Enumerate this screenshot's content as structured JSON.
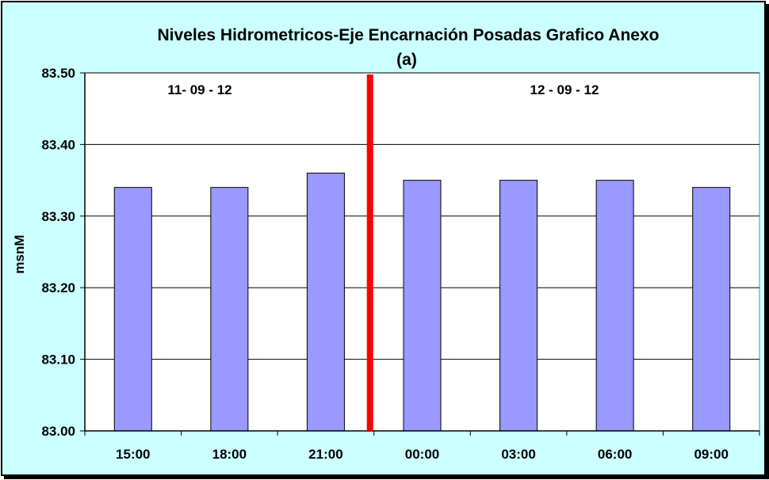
{
  "chart_data": {
    "type": "bar",
    "title": "Niveles Hidrometricos-Eje Encarnación Posadas Grafico Anexo",
    "subtitle": "(a)",
    "xlabel": "",
    "ylabel": "msnM",
    "categories": [
      "15:00",
      "18:00",
      "21:00",
      "00:00",
      "03:00",
      "06:00",
      "09:00"
    ],
    "values": [
      83.34,
      83.34,
      83.36,
      83.35,
      83.35,
      83.35,
      83.34
    ],
    "ylim": [
      83.0,
      83.5
    ],
    "yticks": [
      "83.00",
      "83.10",
      "83.20",
      "83.30",
      "83.40",
      "83.50"
    ],
    "grid": true,
    "legend": "none",
    "annotations": [
      {
        "text": "11- 09 - 12",
        "group": "left"
      },
      {
        "text": "12 - 09 - 12",
        "group": "right"
      }
    ],
    "divider_after_index": 2,
    "colors": {
      "background": "#ccffff",
      "plot_area": "#ffffff",
      "bar_fill": "#9999ff",
      "bar_stroke": "#000000",
      "divider": "#ff0000",
      "gridline": "#000000"
    }
  }
}
